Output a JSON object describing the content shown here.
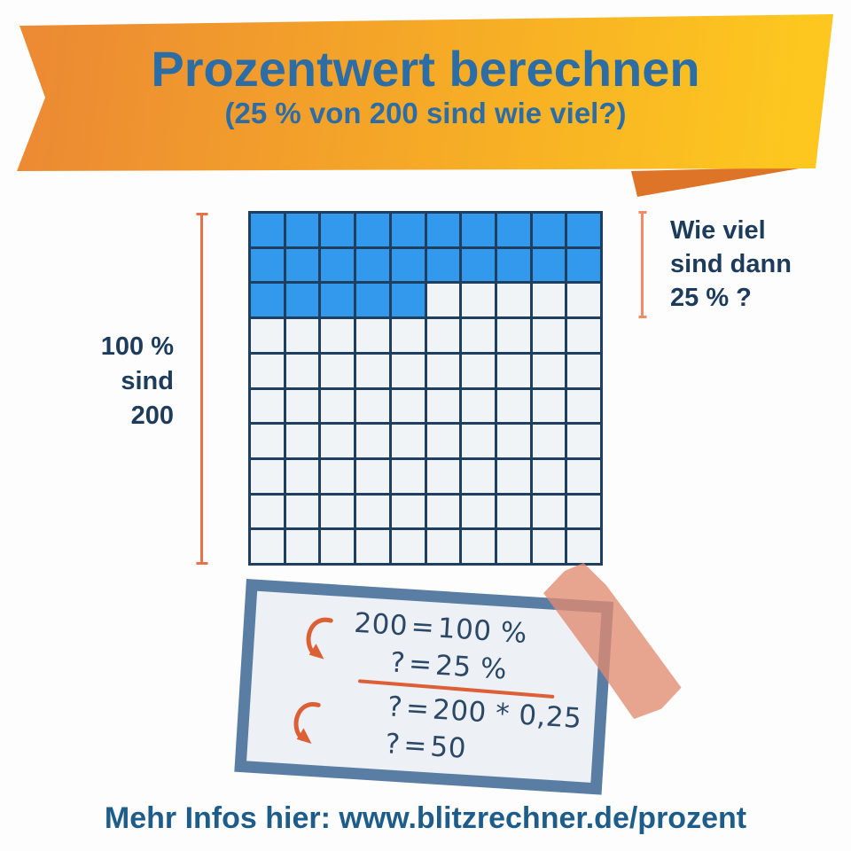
{
  "banner": {
    "title": "Prozentwert berechnen",
    "subtitle": "(25 % von 200 sind wie viel?)",
    "title_color": "#2d6da5",
    "gradient_start": "#ec8b33",
    "gradient_end": "#fdc71f",
    "fold_color": "#de7428"
  },
  "diagram": {
    "grid": {
      "rows": 10,
      "cols": 10,
      "filled_cells": 25,
      "filled_color": "#3399ec",
      "empty_color": "#f1f4f7",
      "line_color": "#1e3f5f"
    },
    "left_label": {
      "line1": "100 %",
      "line2": "sind",
      "line3": "200"
    },
    "right_label": {
      "line1": "Wie viel",
      "line2": "sind dann",
      "line3": "25 % ?"
    },
    "text_color": "#1d3c5c",
    "measure_line_color": "#e8714a"
  },
  "note": {
    "eq1": {
      "lhs": "200",
      "eq": "=",
      "rhs": "100 %"
    },
    "eq2": {
      "lhs": "?",
      "eq": "=",
      "rhs": "25 %"
    },
    "eq3": {
      "lhs": "?",
      "eq": "=",
      "rhs": "200 * 0,25"
    },
    "eq4": {
      "lhs": "?",
      "eq": "=",
      "rhs": "50"
    },
    "border_color": "#5a7ea3",
    "bg_color": "#edf1f5",
    "text_color": "#2b4866",
    "arrow_color": "#dc5f35",
    "tape_color": "#e08a70"
  },
  "footer": {
    "text": "Mehr Infos hier: www.blitzrechner.de/prozent",
    "color": "#1e5c8a"
  }
}
